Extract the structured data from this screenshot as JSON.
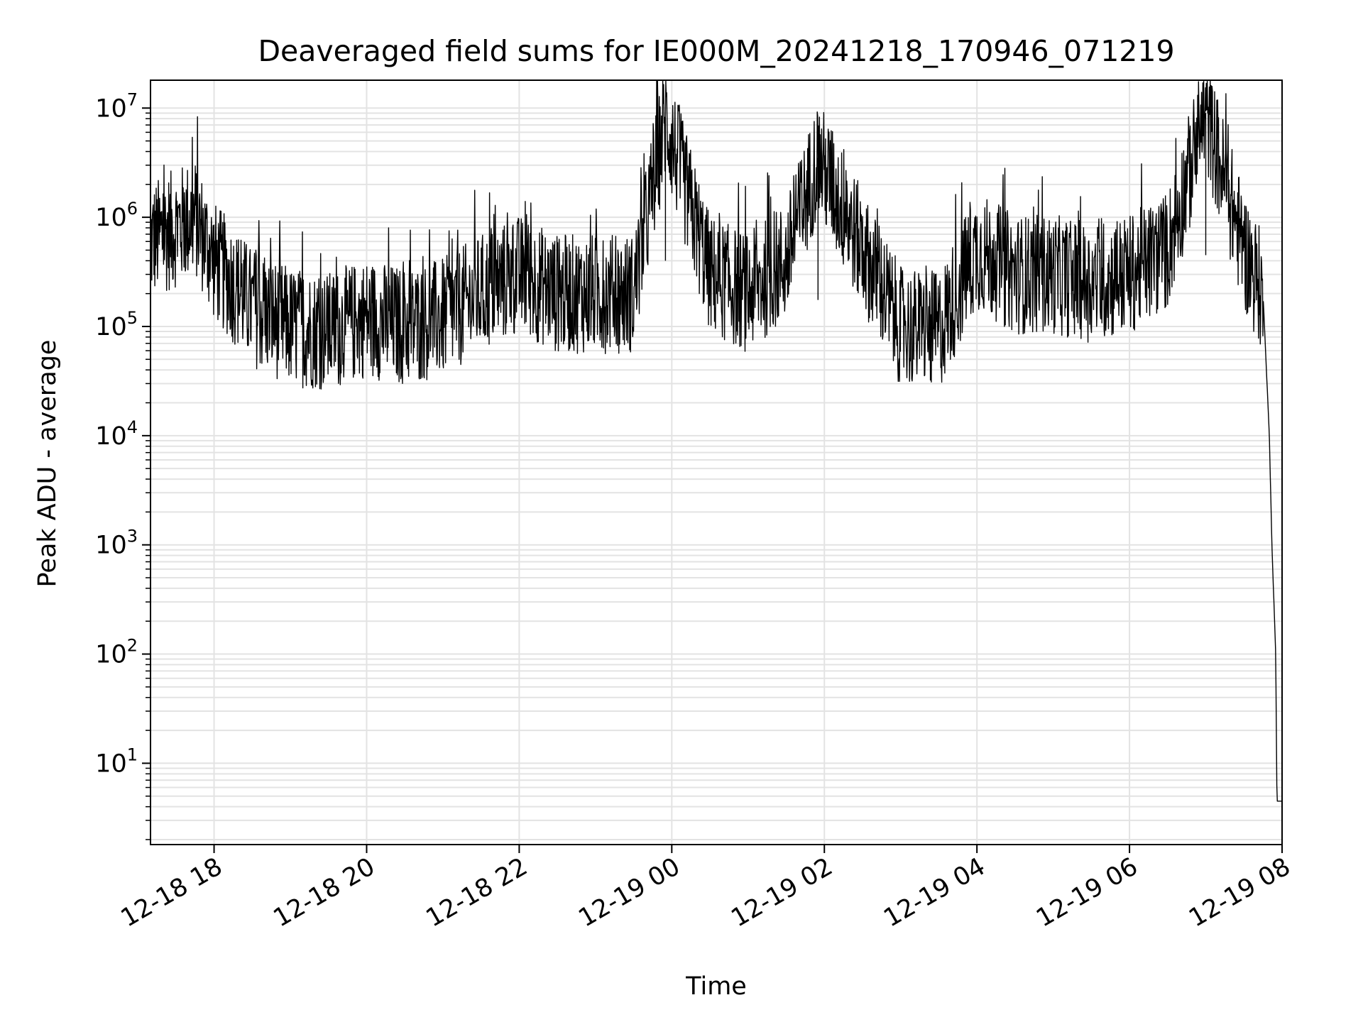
{
  "chart_data": {
    "type": "line",
    "title": "Deaveraged field sums for IE000M_20241218_170946_071219",
    "xlabel": "Time",
    "ylabel": "Peak ADU - average",
    "yscale": "log",
    "xlim": [
      "2024-12-18 17:10",
      "2024-12-19 08:00"
    ],
    "ylim": [
      1.8,
      18000000
    ],
    "grid": true,
    "x_ticks": [
      {
        "value": "2024-12-18 18:00",
        "label": "12-18 18"
      },
      {
        "value": "2024-12-18 20:00",
        "label": "12-18 20"
      },
      {
        "value": "2024-12-18 22:00",
        "label": "12-18 22"
      },
      {
        "value": "2024-12-19 00:00",
        "label": "12-19 00"
      },
      {
        "value": "2024-12-19 02:00",
        "label": "12-19 02"
      },
      {
        "value": "2024-12-19 04:00",
        "label": "12-19 04"
      },
      {
        "value": "2024-12-19 06:00",
        "label": "12-19 06"
      },
      {
        "value": "2024-12-19 08:00",
        "label": "12-19 08"
      }
    ],
    "y_ticks": [
      {
        "value": 10,
        "base": "10",
        "exp": "1"
      },
      {
        "value": 100,
        "base": "10",
        "exp": "2"
      },
      {
        "value": 1000,
        "base": "10",
        "exp": "3"
      },
      {
        "value": 10000,
        "base": "10",
        "exp": "4"
      },
      {
        "value": 100000,
        "base": "10",
        "exp": "5"
      },
      {
        "value": 1000000,
        "base": "10",
        "exp": "6"
      },
      {
        "value": 10000000,
        "base": "10",
        "exp": "7"
      }
    ],
    "series": [
      {
        "color": "#000000",
        "x": [
          "2024-12-18 17:10",
          "2024-12-18 17:30",
          "2024-12-18 17:45",
          "2024-12-18 18:00",
          "2024-12-18 18:30",
          "2024-12-18 19:00",
          "2024-12-18 19:30",
          "2024-12-18 20:00",
          "2024-12-18 20:30",
          "2024-12-18 21:00",
          "2024-12-18 21:30",
          "2024-12-18 22:00",
          "2024-12-18 22:30",
          "2024-12-18 23:00",
          "2024-12-18 23:30",
          "2024-12-18 23:55",
          "2024-12-19 00:30",
          "2024-12-19 01:00",
          "2024-12-19 01:30",
          "2024-12-19 01:55",
          "2024-12-19 02:30",
          "2024-12-19 03:00",
          "2024-12-19 03:30",
          "2024-12-19 04:00",
          "2024-12-19 04:30",
          "2024-12-19 05:00",
          "2024-12-19 05:30",
          "2024-12-19 06:00",
          "2024-12-19 06:30",
          "2024-12-19 07:00",
          "2024-12-19 07:30",
          "2024-12-19 07:45",
          "2024-12-19 07:50",
          "2024-12-19 07:52",
          "2024-12-19 07:55",
          "2024-12-19 07:56",
          "2024-12-19 08:00"
        ],
        "y": [
          600000,
          800000,
          1000000,
          400000,
          150000,
          100000,
          90000,
          120000,
          100000,
          120000,
          200000,
          300000,
          200000,
          200000,
          200000,
          8000000,
          300000,
          200000,
          400000,
          3500000,
          500000,
          100000,
          90000,
          500000,
          300000,
          300000,
          250000,
          300000,
          500000,
          9000000,
          500000,
          200000,
          10000,
          1000,
          100,
          4.5,
          4.5
        ]
      }
    ]
  }
}
